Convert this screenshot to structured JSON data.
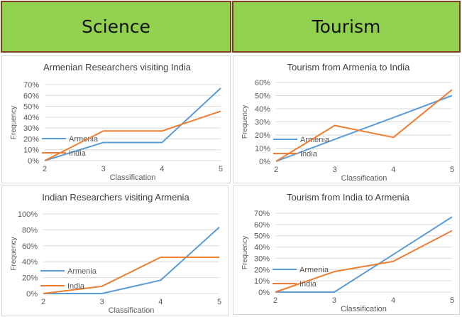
{
  "headers": {
    "science": "Science",
    "tourism": "Tourism"
  },
  "colors": {
    "header_bg": "#92d050",
    "header_border": "#7f3f1e",
    "armenia": "#5b9bd5",
    "india": "#ed7d31",
    "grid": "#d9d9d9"
  },
  "chart_data": [
    {
      "type": "line",
      "title": "Armenian Researchers visiting India",
      "xlabel": "Classification",
      "ylabel": "Frequency",
      "categories": [
        "2",
        "3",
        "4",
        "5"
      ],
      "ylim": [
        0,
        70
      ],
      "yticks": [
        "0%",
        "10%",
        "20%",
        "30%",
        "40%",
        "50%",
        "60%",
        "70%"
      ],
      "series": [
        {
          "name": "Armenia",
          "color": "#5b9bd5",
          "values": [
            0,
            16.7,
            16.7,
            66.7
          ]
        },
        {
          "name": "India",
          "color": "#ed7d31",
          "values": [
            0,
            27.3,
            27.3,
            45.5
          ]
        }
      ]
    },
    {
      "type": "line",
      "title": "Tourism from Armenia to India",
      "xlabel": "Classification",
      "ylabel": "Frequency",
      "categories": [
        "2",
        "3",
        "4",
        "5"
      ],
      "ylim": [
        0,
        60
      ],
      "yticks": [
        "0%",
        "10%",
        "20%",
        "30%",
        "40%",
        "50%",
        "60%"
      ],
      "series": [
        {
          "name": "Armenia",
          "color": "#5b9bd5",
          "values": [
            0,
            16.7,
            33.3,
            50
          ]
        },
        {
          "name": "India",
          "color": "#ed7d31",
          "values": [
            0,
            27.3,
            18.2,
            54.5
          ]
        }
      ]
    },
    {
      "type": "line",
      "title": "Indian Researchers visiting Armenia",
      "xlabel": "Classification",
      "ylabel": "Frequency",
      "categories": [
        "2",
        "3",
        "4",
        "5"
      ],
      "ylim": [
        0,
        100
      ],
      "yticks": [
        "0%",
        "20%",
        "40%",
        "60%",
        "80%",
        "100%"
      ],
      "series": [
        {
          "name": "Armenia",
          "color": "#5b9bd5",
          "values": [
            0,
            0,
            16.7,
            83.3
          ]
        },
        {
          "name": "India",
          "color": "#ed7d31",
          "values": [
            0,
            9.1,
            45.5,
            45.5
          ]
        }
      ]
    },
    {
      "type": "line",
      "title": "Tourism from India to Armenia",
      "xlabel": "Classification",
      "ylabel": "Frequency",
      "categories": [
        "2",
        "3",
        "4",
        "5"
      ],
      "ylim": [
        0,
        70
      ],
      "yticks": [
        "0%",
        "10%",
        "20%",
        "30%",
        "40%",
        "50%",
        "60%",
        "70%"
      ],
      "series": [
        {
          "name": "Armenia",
          "color": "#5b9bd5",
          "values": [
            0,
            0,
            33.3,
            66.7
          ]
        },
        {
          "name": "India",
          "color": "#ed7d31",
          "values": [
            0,
            18.2,
            27.3,
            54.5
          ]
        }
      ]
    }
  ]
}
